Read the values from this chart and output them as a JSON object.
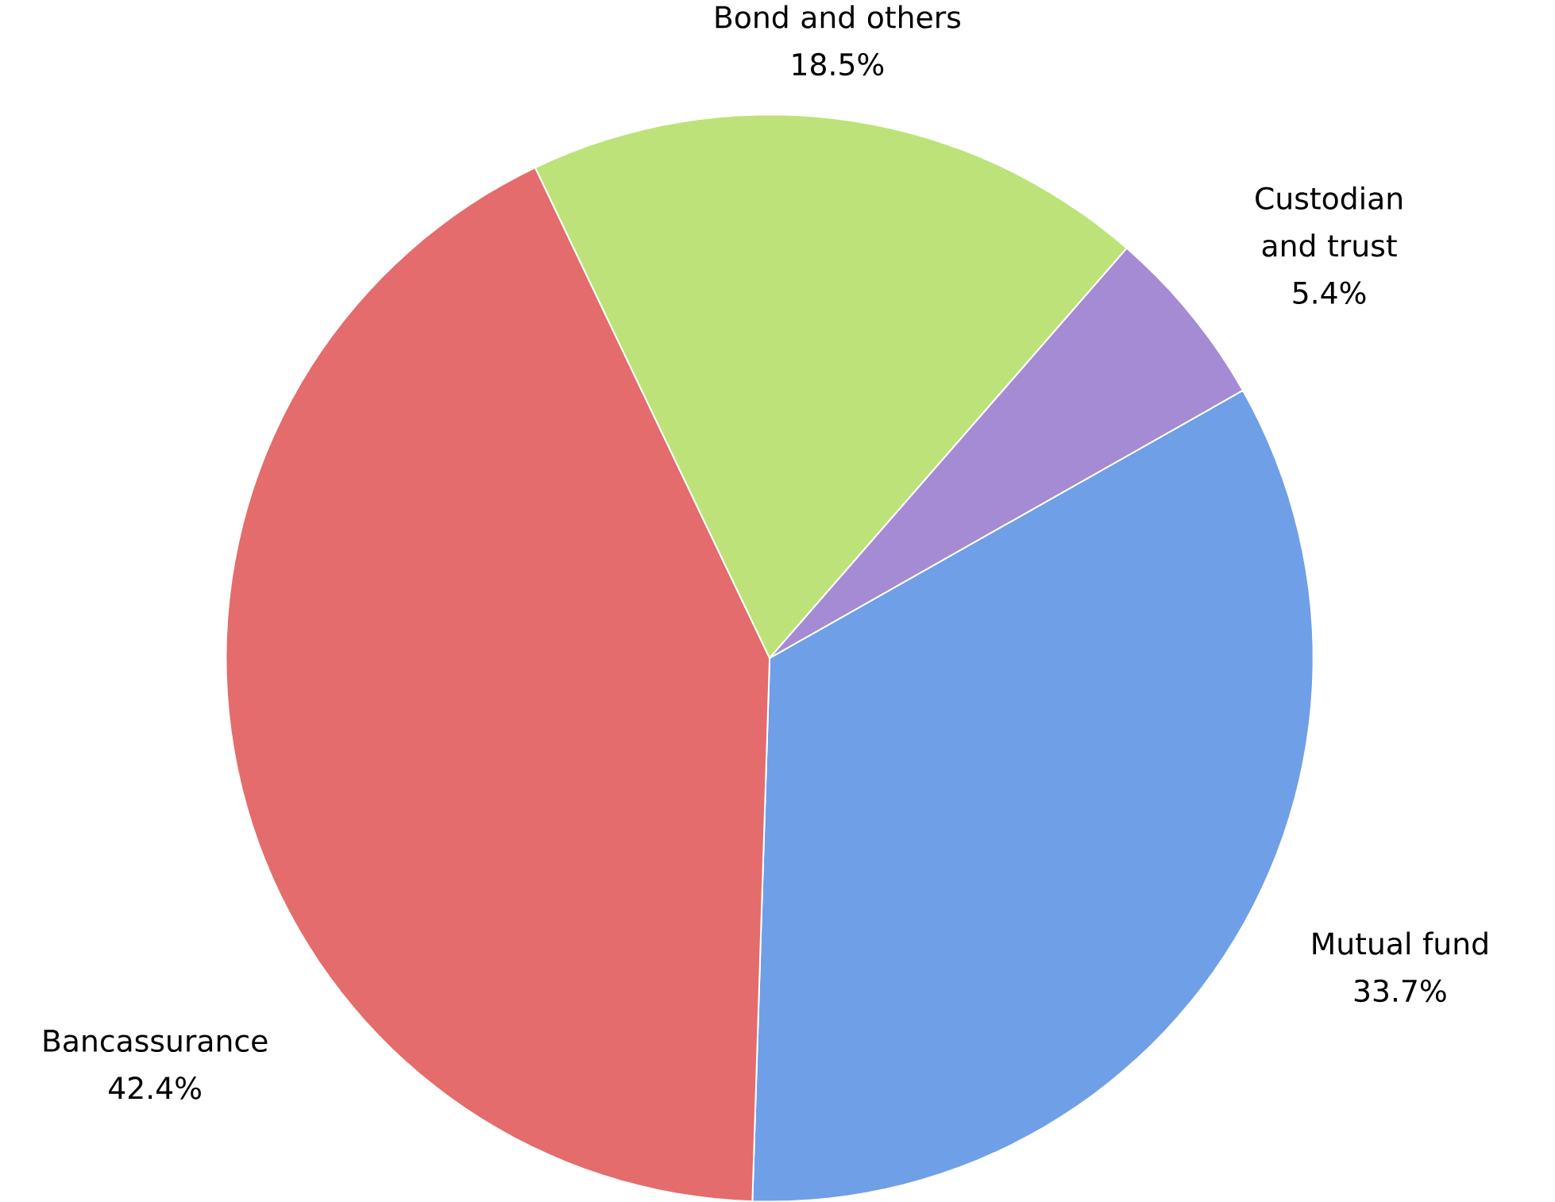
{
  "chart_data": {
    "type": "pie",
    "categories": [
      "Mutual fund",
      "Bancassurance",
      "Bond and others",
      "Custodian and trust"
    ],
    "values": [
      33.7,
      42.4,
      18.5,
      5.4
    ],
    "value_labels": [
      "33.7%",
      "42.4%",
      "18.5%",
      "5.4%"
    ],
    "colors": [
      "#6f9fe6",
      "#e46c6c",
      "#bde27a",
      "#a58ad4"
    ]
  }
}
